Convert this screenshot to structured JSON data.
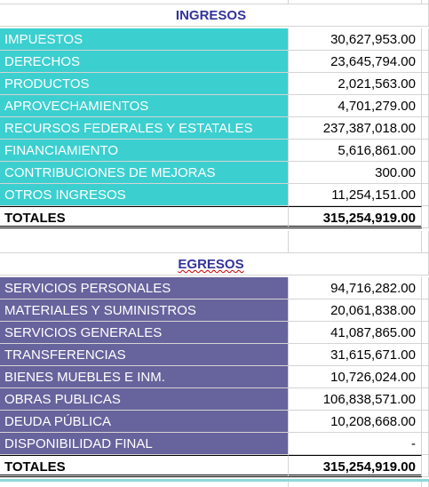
{
  "sections": [
    {
      "title": "INGRESOS",
      "rows": [
        [
          "IMPUESTOS",
          "30,627,953.00"
        ],
        [
          "DERECHOS",
          "23,645,794.00"
        ],
        [
          "PRODUCTOS",
          "2,021,563.00"
        ],
        [
          "APROVECHAMIENTOS",
          "4,701,279.00"
        ],
        [
          "RECURSOS FEDERALES Y ESTATALES",
          "237,387,018.00"
        ],
        [
          "FINANCIAMIENTO",
          "5,616,861.00"
        ],
        [
          "CONTRIBUCIONES DE MEJORAS",
          "300.00"
        ],
        [
          "OTROS INGRESOS",
          "11,254,151.00"
        ]
      ],
      "total": [
        "TOTALES",
        "315,254,919.00"
      ]
    },
    {
      "title": "EGRESOS",
      "rows": [
        [
          "SERVICIOS PERSONALES",
          "94,716,282.00"
        ],
        [
          "MATERIALES Y SUMINISTROS",
          "20,061,838.00"
        ],
        [
          "SERVICIOS GENERALES",
          "41,087,865.00"
        ],
        [
          "TRANSFERENCIAS",
          "31,615,671.00"
        ],
        [
          "BIENES MUEBLES E INM.",
          "10,726,024.00"
        ],
        [
          "OBRAS PUBLICAS",
          "106,838,571.00"
        ],
        [
          "DEUDA PÚBLICA",
          "10,208,668.00"
        ],
        [
          "DISPONIBILIDAD FINAL",
          "-"
        ]
      ],
      "total": [
        "TOTALES",
        "315,254,919.00"
      ]
    }
  ]
}
